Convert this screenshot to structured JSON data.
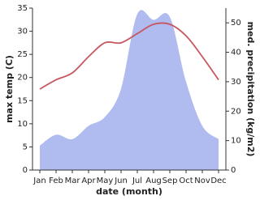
{
  "chart_data": {
    "type": "line-area",
    "x_label": "date (month)",
    "y_label": "max temp (C)",
    "y2_label": "med. precipitation (kg/m2)",
    "categories": [
      "Jan",
      "Feb",
      "Mar",
      "Apr",
      "May",
      "Jun",
      "Jul",
      "Aug",
      "Sep",
      "Oct",
      "Nov",
      "Dec"
    ],
    "series": [
      {
        "name": "max temp",
        "kind": "line",
        "color": "#c8575f",
        "values": [
          17.5,
          19.5,
          21,
          24.5,
          27.5,
          27.5,
          29.5,
          31.5,
          31.5,
          29,
          24.5,
          19.5
        ]
      },
      {
        "name": "precipitation",
        "kind": "area",
        "axis": "y2",
        "color": "#b0bcf0",
        "values": [
          8.3,
          12,
          10.5,
          15,
          18,
          27.6,
          53,
          51,
          52,
          30,
          15,
          10.5
        ]
      }
    ],
    "ylim": [
      0,
      35
    ],
    "yticks": [
      0,
      5,
      10,
      15,
      20,
      25,
      30,
      35
    ],
    "y2lim": [
      0,
      55
    ],
    "y2ticks": [
      0,
      10,
      20,
      30,
      40,
      50
    ]
  }
}
